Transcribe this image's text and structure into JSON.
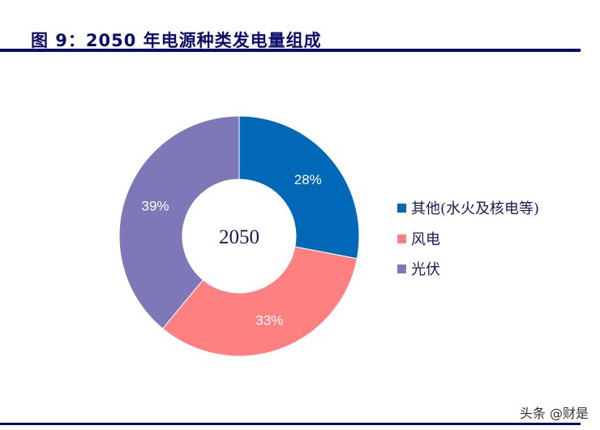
{
  "title": "图 9：2050 年电源种类发电量组成",
  "watermark": "头条 @财是",
  "chart_data": {
    "type": "pie",
    "donut": true,
    "center_label": "2050",
    "categories": [
      "其他(水火及核电等)",
      "风电",
      "光伏"
    ],
    "values": [
      28,
      33,
      39
    ],
    "labels": [
      "28%",
      "33%",
      "39%"
    ],
    "colors": [
      "#0068b7",
      "#ff8080",
      "#7f78b8"
    ],
    "legend": "right"
  }
}
